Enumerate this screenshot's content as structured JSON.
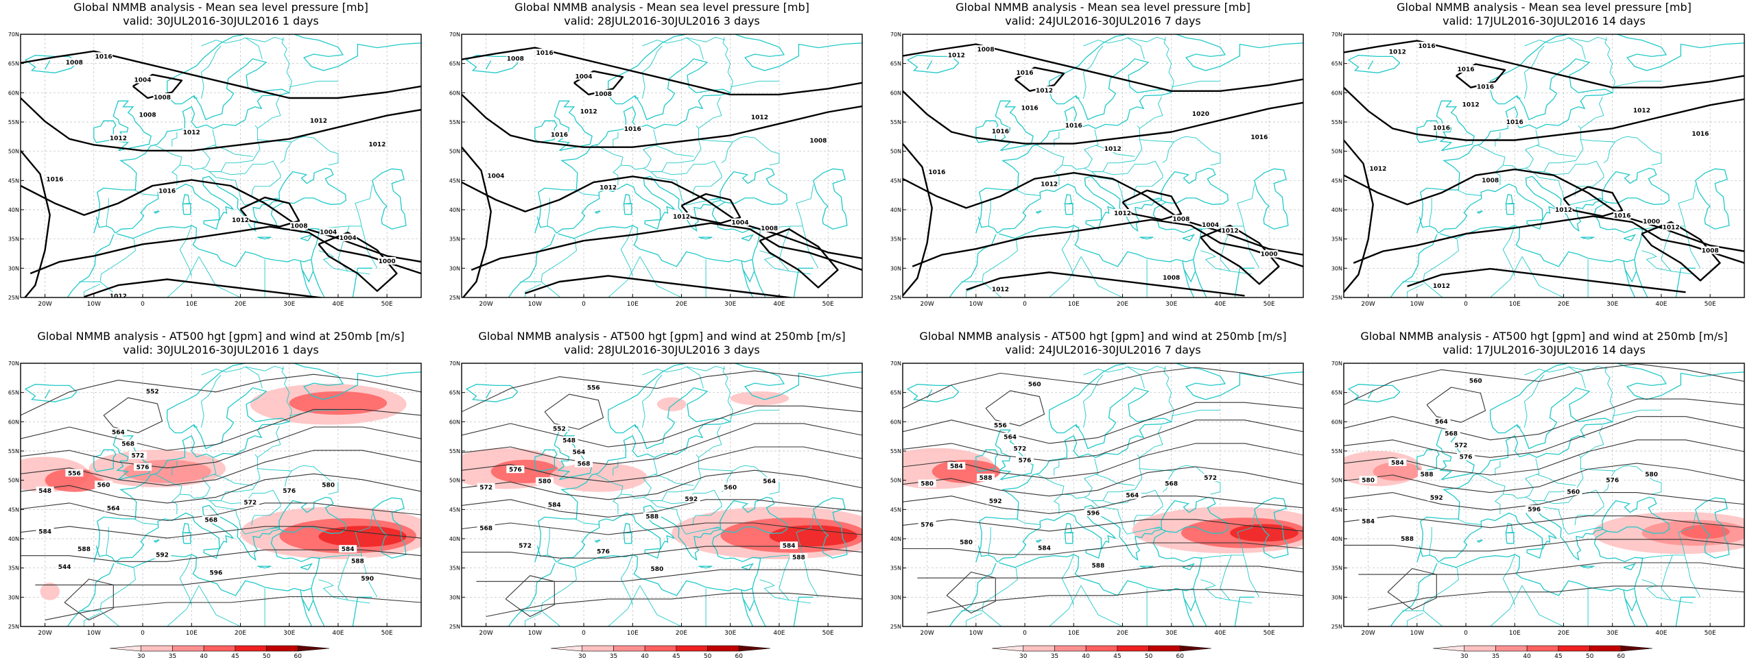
{
  "panels": [
    {
      "row": 0,
      "col": 0,
      "title": "Global NMMB analysis - Mean sea level pressure [mb]",
      "subtitle": "valid: 30JUL2016-30JUL2016   1 days",
      "labels": [
        "1008",
        "1016",
        "1004",
        "1008",
        "1008",
        "1012",
        "1012",
        "1012",
        "1012",
        "1016",
        "1016",
        "1012",
        "1008",
        "1004",
        "1004",
        "1000",
        "1012"
      ]
    },
    {
      "row": 0,
      "col": 1,
      "title": "Global NMMB analysis - Mean sea level pressure [mb]",
      "subtitle": "valid: 28JUL2016-30JUL2016   3 days",
      "labels": [
        "1008",
        "1016",
        "1004",
        "1008",
        "1012",
        "1016",
        "1016",
        "1012",
        "1008",
        "1004",
        "1012",
        "1012",
        "1004",
        "1008"
      ]
    },
    {
      "row": 0,
      "col": 2,
      "title": "Global NMMB analysis - Mean sea level pressure [mb]",
      "subtitle": "valid: 24JUL2016-30JUL2016   7 days",
      "labels": [
        "1012",
        "1008",
        "1016",
        "1012",
        "1016",
        "1016",
        "1016",
        "1020",
        "1016",
        "1016",
        "1012",
        "1012",
        "1008",
        "1004",
        "1012",
        "1000",
        "1012",
        "1008",
        "1012"
      ]
    },
    {
      "row": 0,
      "col": 3,
      "title": "Global NMMB analysis - Mean sea level pressure [mb]",
      "subtitle": "valid: 17JUL2016-30JUL2016   14 days",
      "labels": [
        "1012",
        "1016",
        "1016",
        "1016",
        "1012",
        "1016",
        "1016",
        "1012",
        "1016",
        "1012",
        "1008",
        "1012",
        "1016",
        "1000",
        "1012",
        "1008",
        "1012"
      ]
    },
    {
      "row": 1,
      "col": 0,
      "title": "Global NMMB analysis - AT500 hgt [gpm] and wind at 250mb [m/s]",
      "subtitle": "valid: 30JUL2016-30JUL2016   1 days",
      "labels": [
        "552",
        "564",
        "568",
        "572",
        "576",
        "548",
        "556",
        "560",
        "564",
        "568",
        "572",
        "576",
        "580",
        "584",
        "588",
        "592",
        "596",
        "584",
        "588",
        "590",
        "544"
      ]
    },
    {
      "row": 1,
      "col": 1,
      "title": "Global NMMB analysis - AT500 hgt [gpm] and wind at 250mb [m/s]",
      "subtitle": "valid: 28JUL2016-30JUL2016   3 days",
      "labels": [
        "556",
        "552",
        "548",
        "564",
        "568",
        "572",
        "576",
        "580",
        "584",
        "588",
        "592",
        "560",
        "564",
        "568",
        "572",
        "576",
        "580",
        "584",
        "588"
      ]
    },
    {
      "row": 1,
      "col": 2,
      "title": "Global NMMB analysis - AT500 hgt [gpm] and wind at 250mb [m/s]",
      "subtitle": "valid: 24JUL2016-30JUL2016   7 days",
      "labels": [
        "560",
        "556",
        "564",
        "572",
        "576",
        "580",
        "584",
        "588",
        "592",
        "596",
        "564",
        "568",
        "572",
        "576",
        "580",
        "584",
        "588"
      ]
    },
    {
      "row": 1,
      "col": 3,
      "title": "Global NMMB analysis - AT500 hgt [gpm] and wind at 250mb [m/s]",
      "subtitle": "valid: 17JUL2016-30JUL2016   14 days",
      "labels": [
        "560",
        "564",
        "568",
        "572",
        "576",
        "580",
        "584",
        "588",
        "592",
        "596",
        "560",
        "576",
        "580",
        "584",
        "588"
      ]
    }
  ],
  "lat_ticks": [
    "70N",
    "65N",
    "60N",
    "55N",
    "50N",
    "45N",
    "40N",
    "35N",
    "30N",
    "25N"
  ],
  "lon_ticks": [
    "20W",
    "10W",
    "0",
    "10E",
    "20E",
    "30E",
    "40E",
    "50E"
  ],
  "colorbar": {
    "ticks": [
      "30",
      "35",
      "40",
      "45",
      "50",
      "60"
    ],
    "colors": [
      "#ffe4e4",
      "#ffc0c0",
      "#ff9090",
      "#ff6060",
      "#ee2020",
      "#c00000",
      "#600000"
    ]
  },
  "colors": {
    "coast": "#20c8c8",
    "isobar": "#000000",
    "height": "#333333"
  }
}
